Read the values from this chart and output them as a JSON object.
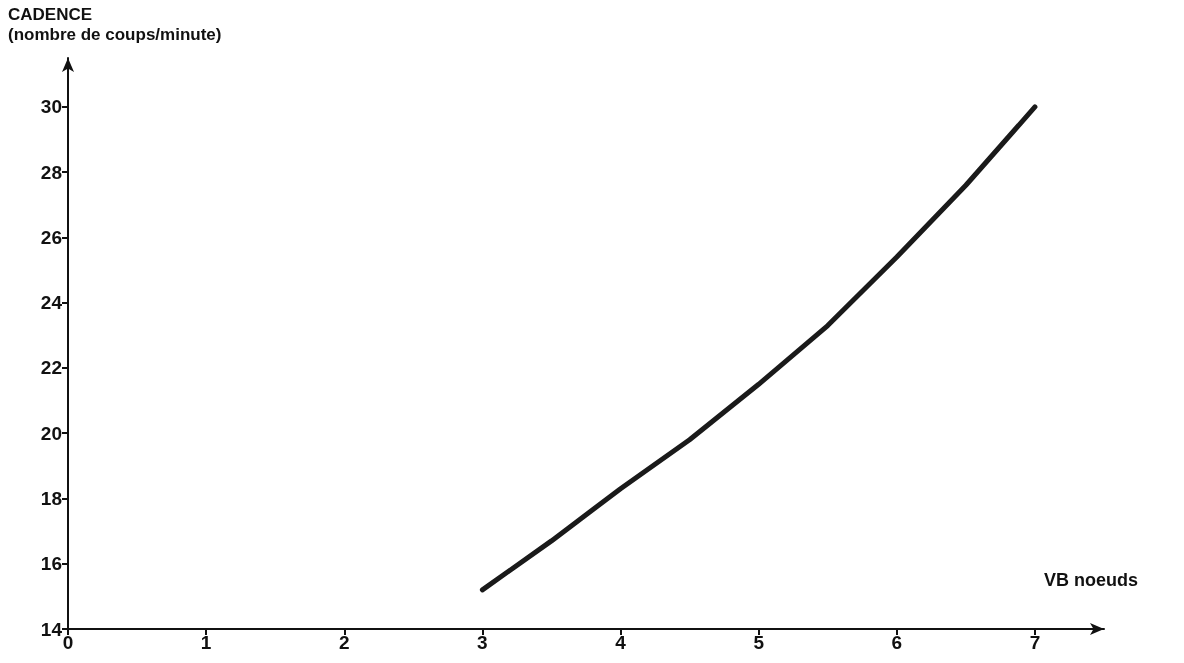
{
  "chart_data": {
    "type": "line",
    "ylabel": "CADENCE\n(nombre de coups/minute)",
    "xlabel": "VB noeuds",
    "x": [
      3,
      3.5,
      4,
      4.5,
      5,
      5.5,
      6,
      6.5,
      7
    ],
    "series": [
      {
        "color": "#1a1a1a",
        "values": [
          15.2,
          16.7,
          18.3,
          19.8,
          21.5,
          23.3,
          25.4,
          27.6,
          30
        ]
      }
    ],
    "xlim": [
      0,
      7.5
    ],
    "ylim": [
      14,
      31.5
    ],
    "xticks": [
      0,
      1,
      2,
      3,
      4,
      5,
      6,
      7
    ],
    "yticks": [
      14,
      16,
      18,
      20,
      22,
      24,
      26,
      28,
      30
    ],
    "grid": false,
    "marker": "none",
    "line_style": "solid"
  }
}
